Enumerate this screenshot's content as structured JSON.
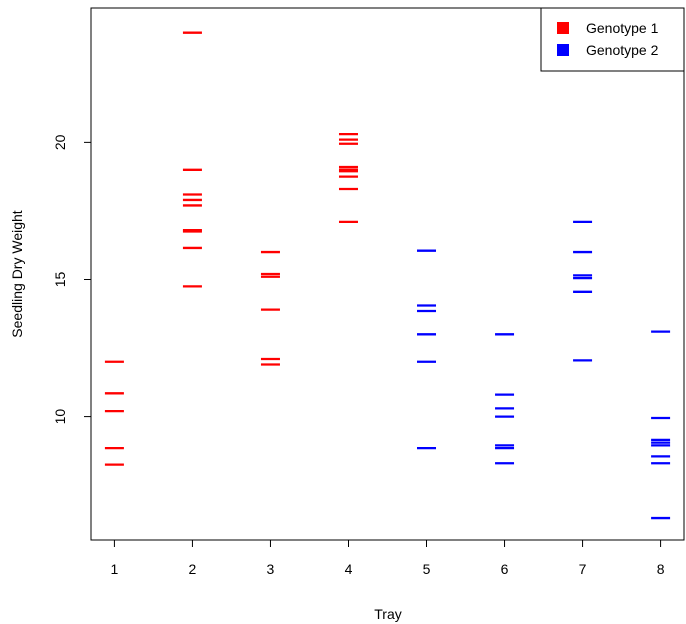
{
  "chart_data": {
    "type": "scatter",
    "xlabel": "Tray",
    "ylabel": "Seedling Dry Weight",
    "x_ticks": [
      "1",
      "2",
      "3",
      "4",
      "5",
      "6",
      "7",
      "8"
    ],
    "y_ticks": [
      "10",
      "15",
      "20"
    ],
    "xlim": [
      0.7,
      8.3
    ],
    "ylim": [
      5.5,
      24.9
    ],
    "legend": {
      "position": "top-right"
    },
    "series": [
      {
        "name": "Genotype 1",
        "color": "#ff0000",
        "points": [
          {
            "x": 1,
            "y": 12.0
          },
          {
            "x": 1,
            "y": 10.85
          },
          {
            "x": 1,
            "y": 10.2
          },
          {
            "x": 1,
            "y": 8.85
          },
          {
            "x": 1,
            "y": 8.25
          },
          {
            "x": 2,
            "y": 24.0
          },
          {
            "x": 2,
            "y": 19.0
          },
          {
            "x": 2,
            "y": 18.1
          },
          {
            "x": 2,
            "y": 17.9
          },
          {
            "x": 2,
            "y": 17.7
          },
          {
            "x": 2,
            "y": 16.8
          },
          {
            "x": 2,
            "y": 16.75
          },
          {
            "x": 2,
            "y": 16.15
          },
          {
            "x": 2,
            "y": 14.75
          },
          {
            "x": 3,
            "y": 16.0
          },
          {
            "x": 3,
            "y": 15.2
          },
          {
            "x": 3,
            "y": 15.1
          },
          {
            "x": 3,
            "y": 13.9
          },
          {
            "x": 3,
            "y": 12.1
          },
          {
            "x": 3,
            "y": 11.9
          },
          {
            "x": 4,
            "y": 20.3
          },
          {
            "x": 4,
            "y": 20.1
          },
          {
            "x": 4,
            "y": 19.95
          },
          {
            "x": 4,
            "y": 19.1
          },
          {
            "x": 4,
            "y": 19.0
          },
          {
            "x": 4,
            "y": 18.95
          },
          {
            "x": 4,
            "y": 18.75
          },
          {
            "x": 4,
            "y": 18.3
          },
          {
            "x": 4,
            "y": 17.1
          }
        ]
      },
      {
        "name": "Genotype 2",
        "color": "#0000ff",
        "points": [
          {
            "x": 5,
            "y": 16.05
          },
          {
            "x": 5,
            "y": 14.05
          },
          {
            "x": 5,
            "y": 13.85
          },
          {
            "x": 5,
            "y": 13.0
          },
          {
            "x": 5,
            "y": 12.0
          },
          {
            "x": 5,
            "y": 8.85
          },
          {
            "x": 6,
            "y": 13.0
          },
          {
            "x": 6,
            "y": 10.8
          },
          {
            "x": 6,
            "y": 10.3
          },
          {
            "x": 6,
            "y": 10.0
          },
          {
            "x": 6,
            "y": 8.95
          },
          {
            "x": 6,
            "y": 8.85
          },
          {
            "x": 6,
            "y": 8.3
          },
          {
            "x": 7,
            "y": 17.1
          },
          {
            "x": 7,
            "y": 16.0
          },
          {
            "x": 7,
            "y": 15.15
          },
          {
            "x": 7,
            "y": 15.05
          },
          {
            "x": 7,
            "y": 14.55
          },
          {
            "x": 7,
            "y": 12.05
          },
          {
            "x": 8,
            "y": 13.1
          },
          {
            "x": 8,
            "y": 9.95
          },
          {
            "x": 8,
            "y": 9.15
          },
          {
            "x": 8,
            "y": 9.05
          },
          {
            "x": 8,
            "y": 8.95
          },
          {
            "x": 8,
            "y": 8.55
          },
          {
            "x": 8,
            "y": 8.3
          },
          {
            "x": 8,
            "y": 6.3
          }
        ]
      }
    ]
  }
}
